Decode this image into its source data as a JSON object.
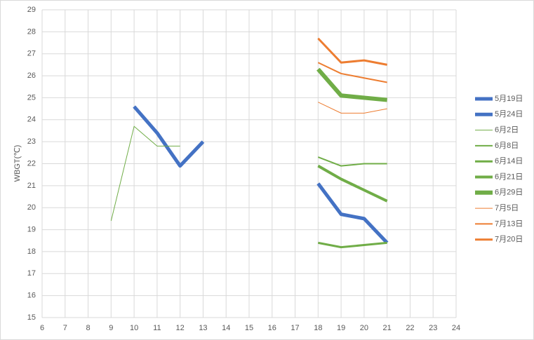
{
  "chart_data": {
    "type": "line",
    "y_label": "WBGT(℃)",
    "xlim": [
      6,
      24
    ],
    "xticks": [
      6,
      7,
      8,
      9,
      10,
      11,
      12,
      13,
      14,
      15,
      16,
      17,
      18,
      19,
      20,
      21,
      22,
      23,
      24
    ],
    "ylim": [
      15,
      29
    ],
    "yticks": [
      15,
      16,
      17,
      18,
      19,
      20,
      21,
      22,
      23,
      24,
      25,
      26,
      27,
      28,
      29
    ],
    "grid": true,
    "legend": "right",
    "series": [
      {
        "name": "5月19日",
        "color": "#4472c4",
        "line_width": 5,
        "x": [
          10,
          11,
          12,
          13
        ],
        "values": [
          24.6,
          23.4,
          21.9,
          23.0
        ]
      },
      {
        "name": "5月24日",
        "color": "#4472c4",
        "line_width": 5,
        "x": [
          18,
          19,
          20,
          21
        ],
        "values": [
          21.1,
          19.7,
          19.5,
          18.4
        ]
      },
      {
        "name": "6月2日",
        "color": "#70ad47",
        "line_width": 1,
        "x": [
          9,
          10,
          11,
          12
        ],
        "values": [
          19.4,
          23.7,
          22.8,
          22.8
        ]
      },
      {
        "name": "6月8日",
        "color": "#70ad47",
        "line_width": 2,
        "x": [
          18,
          19,
          20,
          21
        ],
        "values": [
          22.3,
          21.9,
          22.0,
          22.0
        ]
      },
      {
        "name": "6月14日",
        "color": "#70ad47",
        "line_width": 3,
        "x": [
          18,
          19,
          20,
          21
        ],
        "values": [
          18.4,
          18.2,
          18.3,
          18.4
        ]
      },
      {
        "name": "6月21日",
        "color": "#70ad47",
        "line_width": 4,
        "x": [
          18,
          19,
          20,
          21
        ],
        "values": [
          21.9,
          21.3,
          20.8,
          20.3
        ]
      },
      {
        "name": "6月29日",
        "color": "#70ad47",
        "line_width": 6,
        "x": [
          18,
          19,
          20,
          21
        ],
        "values": [
          26.3,
          25.1,
          25.0,
          24.9
        ]
      },
      {
        "name": "7月5日",
        "color": "#ed7d31",
        "line_width": 1,
        "x": [
          18,
          19,
          20,
          21
        ],
        "values": [
          24.8,
          24.3,
          24.3,
          24.5
        ]
      },
      {
        "name": "7月13日",
        "color": "#ed7d31",
        "line_width": 2,
        "x": [
          18,
          19,
          20,
          21
        ],
        "values": [
          26.6,
          26.1,
          25.9,
          25.7
        ]
      },
      {
        "name": "7月20日",
        "color": "#ed7d31",
        "line_width": 3,
        "x": [
          18,
          19,
          20,
          21
        ],
        "values": [
          27.7,
          26.6,
          26.7,
          26.5
        ]
      }
    ]
  }
}
